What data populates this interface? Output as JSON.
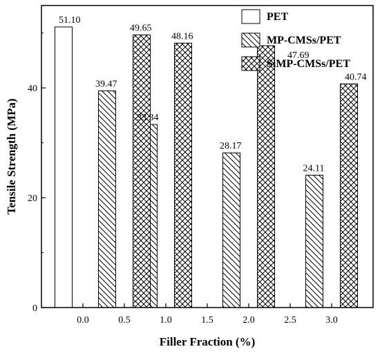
{
  "chart_data": {
    "type": "bar",
    "title": "",
    "xlabel": "Filler Fraction (%)",
    "ylabel": "Tensile Strength (MPa)",
    "xlim": [
      -0.5,
      3.5
    ],
    "ylim": [
      0,
      55
    ],
    "x_ticks": [
      "0.0",
      "0.5",
      "1.0",
      "1.5",
      "2.0",
      "2.5",
      "3.0"
    ],
    "x_tick_values": [
      0.0,
      0.5,
      1.0,
      1.5,
      2.0,
      2.5,
      3.0
    ],
    "y_ticks": [
      0,
      20,
      40
    ],
    "grid": false,
    "legend_position": "top-right",
    "series": [
      {
        "name": "PET",
        "pattern": "none",
        "points": [
          {
            "x": 0.0,
            "value": 51.1,
            "label": "51.10"
          }
        ]
      },
      {
        "name": "MP-CMSs/PET",
        "pattern": "diagonal-hatch",
        "points": [
          {
            "x": 0.5,
            "value": 39.47,
            "label": "39.47"
          },
          {
            "x": 1.0,
            "value": 33.34,
            "label": "33.34"
          },
          {
            "x": 2.0,
            "value": 28.17,
            "label": "28.17"
          },
          {
            "x": 3.0,
            "value": 24.11,
            "label": "24.11"
          }
        ]
      },
      {
        "name": "SiMP-CMSs/PET",
        "pattern": "cross-hatch",
        "points": [
          {
            "x": 0.5,
            "value": 49.65,
            "label": "49.65"
          },
          {
            "x": 1.0,
            "value": 48.16,
            "label": "48.16"
          },
          {
            "x": 2.0,
            "value": 47.69,
            "label": "47.69"
          },
          {
            "x": 3.0,
            "value": 40.74,
            "label": "40.74"
          }
        ]
      }
    ]
  }
}
